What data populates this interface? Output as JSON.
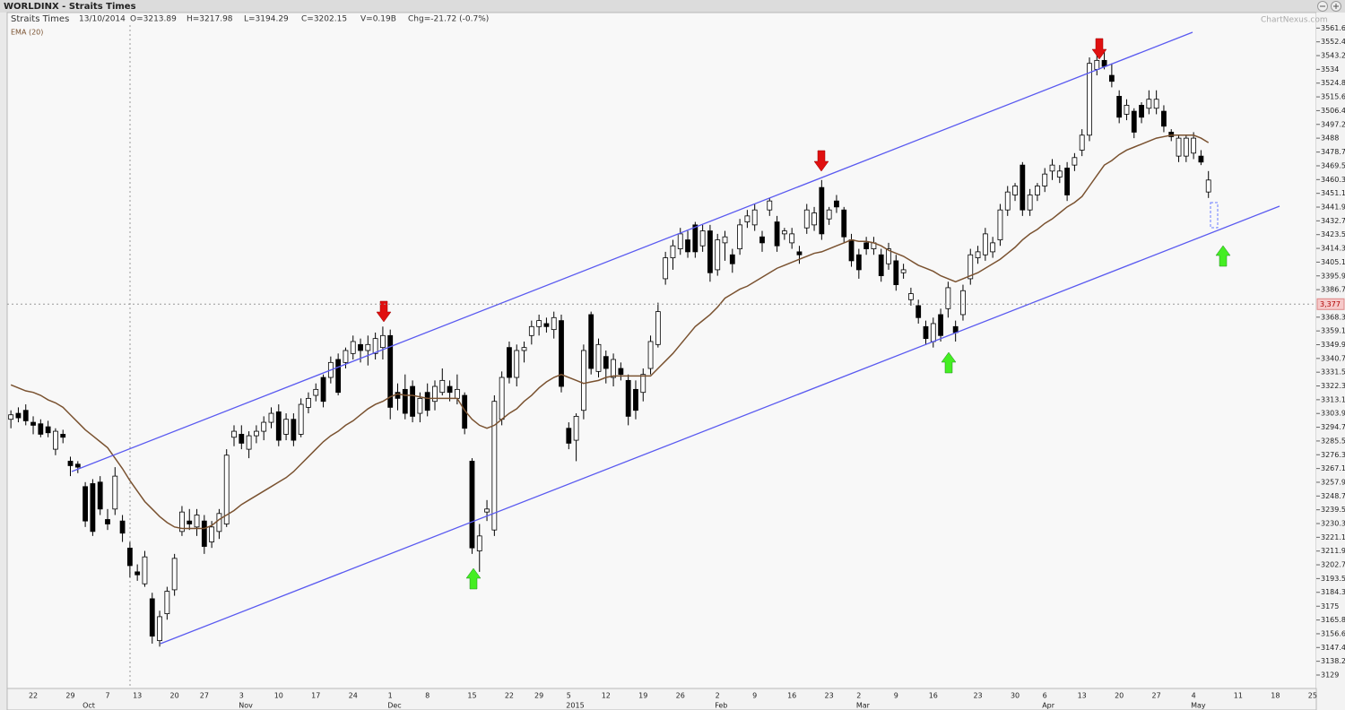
{
  "chart_data": {
    "type": "candlestick",
    "title": "WORLDINX - Straits Times",
    "name": "Straits Times",
    "date": "13/10/2014",
    "open_text": "O=3213.89",
    "high_text": "H=3217.98",
    "low_text": "L=3194.29",
    "close_text": "C=3202.15",
    "volume_text": "V=0.19B",
    "change_text": "Chg=-21.72 (-0.7%)",
    "watermark": "ChartNexus.com",
    "categories": [
      null,
      null,
      null,
      "22",
      null,
      null,
      null,
      null,
      "29",
      null,
      null,
      null,
      null,
      "7",
      null,
      null,
      null,
      "13",
      null,
      null,
      null,
      null,
      "20",
      null,
      null,
      null,
      "27",
      null,
      null,
      null,
      null,
      "3",
      null,
      null,
      null,
      null,
      "10",
      null,
      null,
      null,
      null,
      "17",
      null,
      null,
      null,
      null,
      "24",
      null,
      null,
      null,
      null,
      "1",
      null,
      null,
      null,
      null,
      "8",
      null,
      null,
      null,
      null,
      null,
      "15",
      null,
      null,
      null,
      null,
      "22",
      null,
      null,
      null,
      "29",
      null,
      null,
      null,
      "5",
      null,
      null,
      null,
      null,
      "12",
      null,
      null,
      null,
      null,
      "19",
      null,
      null,
      null,
      null,
      "26",
      null,
      null,
      null,
      null,
      "2",
      null,
      null,
      null,
      null,
      "9",
      null,
      null,
      null,
      null,
      "16",
      null,
      null,
      null,
      null,
      "23",
      null,
      null,
      null,
      "2",
      null,
      null,
      null,
      null,
      "9",
      null,
      null,
      null,
      null,
      "16",
      null,
      null,
      null,
      null,
      null,
      "23",
      null,
      null,
      null,
      null,
      "30",
      null,
      null,
      null,
      "6",
      null,
      null,
      null,
      null,
      "13",
      null,
      null,
      null,
      null,
      "20",
      null,
      null,
      null,
      null,
      "27",
      null,
      null,
      null,
      null,
      "4",
      null,
      null,
      null,
      null,
      null,
      "11",
      null,
      null,
      null,
      null,
      "18",
      null,
      null,
      null,
      null,
      "25"
    ],
    "months": [
      null,
      null,
      null,
      null,
      null,
      null,
      null,
      null,
      null,
      null,
      "Oct",
      null,
      null,
      null,
      null,
      null,
      null,
      null,
      null,
      null,
      null,
      null,
      null,
      null,
      null,
      null,
      null,
      null,
      null,
      null,
      null,
      "Nov",
      null,
      null,
      null,
      null,
      null,
      null,
      null,
      null,
      null,
      null,
      null,
      null,
      null,
      null,
      null,
      null,
      null,
      null,
      null,
      "Dec",
      null,
      null,
      null,
      null,
      null,
      null,
      null,
      null,
      null,
      null,
      null,
      null,
      null,
      null,
      null,
      null,
      null,
      null,
      null,
      null,
      null,
      null,
      null,
      "2015",
      null,
      null,
      null,
      null,
      null,
      null,
      null,
      null,
      null,
      null,
      null,
      null,
      null,
      null,
      null,
      null,
      null,
      null,
      null,
      "Feb",
      null,
      null,
      null,
      null,
      null,
      null,
      null,
      null,
      null,
      null,
      null,
      null,
      null,
      null,
      null,
      null,
      null,
      null,
      "Mar",
      null,
      null,
      null,
      null,
      null,
      null,
      null,
      null,
      null,
      null,
      null,
      null,
      null,
      null,
      null,
      null,
      null,
      null,
      null,
      null,
      null,
      null,
      null,
      null,
      "Apr",
      null,
      null,
      null,
      null,
      null,
      null,
      null,
      null,
      null,
      null,
      null,
      null,
      null,
      null,
      null,
      null,
      null,
      null,
      null,
      "May",
      null,
      null,
      null,
      null,
      null,
      null,
      null,
      null,
      null,
      null,
      null,
      null,
      null,
      null,
      null,
      null
    ],
    "open": [
      3300,
      3304,
      3306,
      3298,
      3297,
      3295,
      3280,
      3290,
      3272,
      3270,
      3255,
      3257,
      3258,
      3233,
      3240,
      3232,
      3213.89,
      3198,
      3190,
      3180,
      3152,
      3170,
      3186,
      3225,
      3232,
      3228,
      3232,
      3218,
      3225,
      3230,
      3288,
      3290,
      3280,
      3289,
      3292,
      3298,
      3305,
      3290,
      3300,
      3290,
      3308,
      3316,
      3328,
      3328,
      3340,
      3338,
      3344,
      3350,
      3346,
      3344,
      3348,
      3356,
      3318,
      3320,
      3322,
      3304,
      3318,
      3312,
      3318,
      3322,
      3314,
      3316,
      3272,
      3212,
      3238,
      3226,
      3300,
      3348,
      3328,
      3346,
      3356,
      3362,
      3364,
      3360,
      3366,
      3294,
      3286,
      3306,
      3370,
      3332,
      3342,
      3328,
      3334,
      3326,
      3320,
      3318,
      3334,
      3350,
      3394,
      3408,
      3414,
      3420,
      3430,
      3416,
      3426,
      3400,
      3418,
      3410,
      3414,
      3432,
      3430,
      3422,
      3440,
      3432,
      3424,
      3418,
      3412,
      3428,
      3430,
      3455,
      3434,
      3446,
      3440,
      3420,
      3410,
      3418,
      3414,
      3410,
      3404,
      3406,
      3398,
      3380,
      3376,
      3362,
      3352,
      3370,
      3374,
      3362,
      3370,
      3394,
      3408,
      3410,
      3412,
      3420,
      3440,
      3450,
      3470,
      3440,
      3450,
      3456,
      3466,
      3462,
      3468,
      3470,
      3480,
      3490,
      3534,
      3540,
      3530,
      3516,
      3504,
      3506,
      3510,
      3508,
      3508,
      3506,
      3492,
      3476,
      3476,
      3478,
      3476,
      3452,
      null,
      null,
      null,
      null,
      null,
      null,
      null,
      null,
      null,
      null,
      null,
      null,
      null,
      null
    ],
    "high": [
      3306,
      3308,
      3310,
      3302,
      3300,
      3299,
      3294,
      3293,
      3275,
      3272,
      3258,
      3260,
      3262,
      3240,
      3268,
      3236,
      3217.98,
      3203,
      3212,
      3184,
      3172,
      3188,
      3210,
      3242,
      3240,
      3240,
      3236,
      3232,
      3240,
      3280,
      3296,
      3296,
      3292,
      3296,
      3302,
      3308,
      3310,
      3304,
      3304,
      3314,
      3318,
      3324,
      3330,
      3342,
      3344,
      3348,
      3356,
      3354,
      3356,
      3358,
      3362,
      3360,
      3324,
      3330,
      3326,
      3318,
      3324,
      3326,
      3334,
      3326,
      3330,
      3318,
      3274,
      3230,
      3246,
      3316,
      3332,
      3352,
      3350,
      3352,
      3366,
      3370,
      3368,
      3372,
      3370,
      3298,
      3304,
      3350,
      3372,
      3354,
      3346,
      3344,
      3338,
      3330,
      3326,
      3334,
      3356,
      3378,
      3412,
      3420,
      3428,
      3426,
      3432,
      3430,
      3430,
      3424,
      3426,
      3414,
      3434,
      3440,
      3444,
      3426,
      3448,
      3436,
      3428,
      3428,
      3416,
      3444,
      3442,
      3460,
      3442,
      3450,
      3442,
      3424,
      3414,
      3422,
      3422,
      3414,
      3418,
      3410,
      3404,
      3388,
      3380,
      3366,
      3368,
      3374,
      3392,
      3366,
      3390,
      3414,
      3416,
      3428,
      3422,
      3444,
      3456,
      3458,
      3472,
      3454,
      3458,
      3468,
      3474,
      3470,
      3472,
      3478,
      3494,
      3542,
      3546,
      3546,
      3538,
      3520,
      3514,
      3508,
      3512,
      3520,
      3520,
      3510,
      3494,
      3490,
      3490,
      3492,
      3480,
      3466,
      null,
      null,
      null,
      null,
      null,
      null,
      null,
      null,
      null,
      null,
      null,
      null,
      null,
      null
    ],
    "low": [
      3294,
      3298,
      3296,
      3290,
      3288,
      3288,
      3276,
      3284,
      3262,
      3264,
      3228,
      3222,
      3236,
      3226,
      3236,
      3218,
      3194.29,
      3192,
      3188,
      3150,
      3148,
      3166,
      3182,
      3222,
      3226,
      3222,
      3210,
      3214,
      3220,
      3228,
      3282,
      3280,
      3274,
      3284,
      3286,
      3294,
      3282,
      3286,
      3282,
      3288,
      3304,
      3312,
      3308,
      3324,
      3316,
      3334,
      3340,
      3338,
      3336,
      3340,
      3340,
      3300,
      3306,
      3300,
      3298,
      3298,
      3302,
      3306,
      3316,
      3312,
      3310,
      3290,
      3210,
      3198,
      3232,
      3222,
      3296,
      3324,
      3322,
      3338,
      3350,
      3356,
      3358,
      3354,
      3318,
      3280,
      3272,
      3300,
      3330,
      3328,
      3324,
      3322,
      3326,
      3296,
      3300,
      3312,
      3330,
      3348,
      3390,
      3400,
      3410,
      3408,
      3408,
      3412,
      3392,
      3396,
      3406,
      3398,
      3410,
      3428,
      3426,
      3412,
      3436,
      3412,
      3420,
      3414,
      3404,
      3424,
      3426,
      3420,
      3430,
      3438,
      3418,
      3402,
      3394,
      3410,
      3410,
      3392,
      3400,
      3386,
      3394,
      3376,
      3364,
      3350,
      3348,
      3352,
      3368,
      3352,
      3366,
      3390,
      3404,
      3406,
      3408,
      3416,
      3436,
      3446,
      3436,
      3436,
      3446,
      3452,
      3460,
      3458,
      3446,
      3466,
      3476,
      3486,
      3530,
      3534,
      3522,
      3498,
      3500,
      3488,
      3498,
      3504,
      3504,
      3492,
      3486,
      3472,
      3472,
      3474,
      3470,
      3448,
      null,
      null,
      null,
      null,
      null,
      null,
      null,
      null,
      null,
      null,
      null,
      null,
      null,
      null
    ],
    "close": [
      3303,
      3301,
      3299,
      3296,
      3290,
      3291,
      3292,
      3288,
      3269,
      3268,
      3232,
      3225,
      3240,
      3230,
      3262,
      3223.87,
      3202.15,
      3196,
      3208,
      3155,
      3168,
      3185,
      3207,
      3238,
      3230,
      3236,
      3215,
      3228,
      3237,
      3276,
      3292,
      3284,
      3289,
      3292,
      3298,
      3304,
      3286,
      3300,
      3286,
      3310,
      3314,
      3320,
      3312,
      3338,
      3318,
      3346,
      3352,
      3346,
      3350,
      3354,
      3356,
      3308,
      3314,
      3304,
      3302,
      3314,
      3306,
      3322,
      3326,
      3318,
      3320,
      3294,
      3214,
      3222,
      3240,
      3312,
      3328,
      3328,
      3346,
      3348,
      3362,
      3366,
      3362,
      3368,
      3322,
      3284,
      3302,
      3346,
      3334,
      3350,
      3334,
      3340,
      3330,
      3302,
      3306,
      3330,
      3352,
      3372,
      3408,
      3416,
      3424,
      3412,
      3412,
      3426,
      3398,
      3420,
      3422,
      3404,
      3430,
      3436,
      3440,
      3418,
      3446,
      3416,
      3426,
      3424,
      3410,
      3440,
      3438,
      3424,
      3440,
      3442,
      3422,
      3406,
      3400,
      3414,
      3418,
      3396,
      3414,
      3390,
      3400,
      3384,
      3368,
      3354,
      3364,
      3356,
      3388,
      3358,
      3386,
      3410,
      3412,
      3424,
      3418,
      3440,
      3452,
      3456,
      3440,
      3450,
      3456,
      3464,
      3470,
      3466,
      3450,
      3475,
      3490,
      3538,
      3540,
      3536,
      3526,
      3502,
      3510,
      3492,
      3502,
      3514,
      3514,
      3496,
      3489,
      3488,
      3488,
      3488,
      3472,
      3460,
      null,
      null,
      null,
      null,
      null,
      null,
      null,
      null,
      null,
      null,
      null,
      null,
      null,
      null
    ],
    "series": [
      {
        "name": "EMA (20)",
        "color": "#7a5230",
        "values": [
          3323,
          3321,
          3319,
          3318,
          3316,
          3313,
          3311,
          3308,
          3303,
          3298,
          3293,
          3289,
          3285,
          3281,
          3274,
          3267,
          3259,
          3252,
          3245,
          3240,
          3235,
          3231,
          3228,
          3227,
          3227,
          3227,
          3227,
          3229,
          3233,
          3236,
          3239,
          3243,
          3246,
          3249,
          3252,
          3255,
          3258,
          3261,
          3265,
          3270,
          3275,
          3280,
          3285,
          3289,
          3292,
          3296,
          3299,
          3303,
          3307,
          3310,
          3312,
          3315,
          3317,
          3316,
          3316,
          3315,
          3314,
          3314,
          3314,
          3314,
          3314,
          3306,
          3300,
          3296,
          3294,
          3296,
          3300,
          3304,
          3307,
          3312,
          3316,
          3321,
          3325,
          3328,
          3330,
          3328,
          3326,
          3324,
          3325,
          3326,
          3328,
          3329,
          3329,
          3329,
          3329,
          3329,
          3329,
          3334,
          3339,
          3344,
          3350,
          3356,
          3362,
          3366,
          3370,
          3375,
          3381,
          3384,
          3387,
          3389,
          3392,
          3395,
          3398,
          3401,
          3403,
          3405,
          3407,
          3409,
          3411,
          3412,
          3414,
          3416,
          3418,
          3420,
          3419,
          3419,
          3418,
          3416,
          3413,
          3411,
          3409,
          3406,
          3403,
          3401,
          3399,
          3396,
          3394,
          3392,
          3394,
          3396,
          3398,
          3401,
          3404,
          3407,
          3411,
          3415,
          3420,
          3424,
          3427,
          3431,
          3434,
          3438,
          3442,
          3445,
          3449,
          3456,
          3463,
          3470,
          3473,
          3477,
          3480,
          3482,
          3484,
          3486,
          3488,
          3489,
          3490,
          3490,
          3490,
          3490,
          3488,
          3485,
          null,
          null,
          null,
          null,
          null,
          null,
          null,
          null,
          null,
          null,
          null,
          null,
          null,
          null
        ]
      }
    ],
    "up_color": "#ffffff",
    "down_color": "#000000",
    "ylim": [
      3120,
      3563.6
    ],
    "yticks": [
      3561.6,
      3552.4,
      3543.2,
      3534,
      3524.8,
      3515.6,
      3506.4,
      3497.2,
      3488,
      3478.7,
      3469.5,
      3460.3,
      3451.1,
      3441.9,
      3432.7,
      3423.5,
      3414.3,
      3405.1,
      3395.9,
      3386.7,
      3368.3,
      3359.1,
      3349.9,
      3340.7,
      3331.5,
      3322.3,
      3313.1,
      3303.9,
      3294.7,
      3285.5,
      3276.3,
      3267.1,
      3257.9,
      3248.7,
      3239.5,
      3230.3,
      3221.1,
      3211.9,
      3202.7,
      3193.5,
      3184.3,
      3175,
      3165.8,
      3156.6,
      3147.4,
      3138.2,
      3129
    ],
    "crosshair": {
      "value": 3377,
      "label": "3,377"
    },
    "grid": false
  }
}
